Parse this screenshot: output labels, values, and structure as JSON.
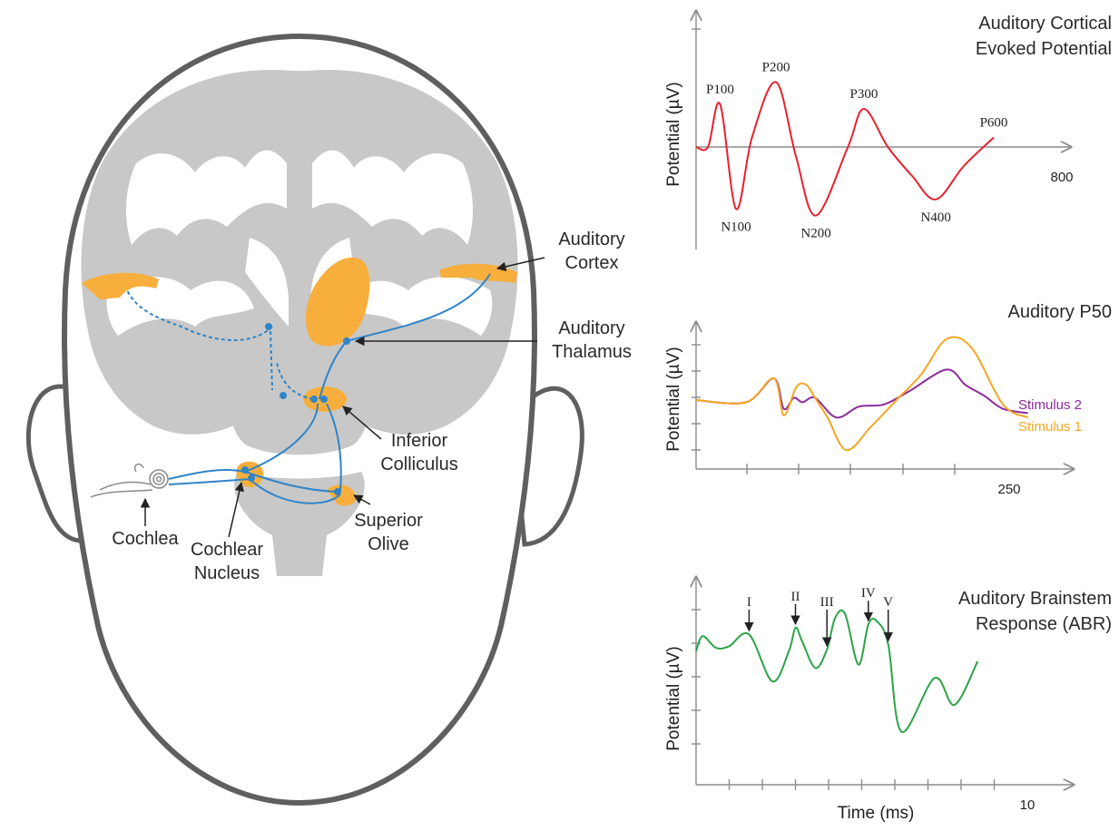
{
  "colors": {
    "orange": "#f7ae3c",
    "pathway_blue": "#2f84c8",
    "brain_gray": "#c8c8c8",
    "outline_gray": "#5f5f5f",
    "acep_red": "#e8212e",
    "p50_stimulus1": "#f5a623",
    "p50_stimulus2": "#8a2a9c",
    "abr_green": "#2aa447"
  },
  "anatomy_labels": {
    "auditory_cortex": [
      "Auditory",
      "Cortex"
    ],
    "auditory_thalamus": [
      "Auditory",
      "Thalamus"
    ],
    "inferior_colliculus": [
      "Inferior",
      "Colliculus"
    ],
    "superior_olive": [
      "Superior",
      "Olive"
    ],
    "cochlear_nucleus": [
      "Cochlear",
      "Nucleus"
    ],
    "cochlea": "Cochlea"
  },
  "chart_data": [
    {
      "type": "line",
      "title": [
        "Auditory Cortical",
        "Evoked Potential"
      ],
      "ylabel": "Potential (µV)",
      "xlabel": "",
      "x_tick_label": "800",
      "xlim": [
        0,
        800
      ],
      "ylim": [
        -1,
        1
      ],
      "series": [
        {
          "color": "#e8212e",
          "x": [
            0,
            30,
            60,
            100,
            140,
            200,
            250,
            300,
            380,
            420,
            480,
            540,
            600,
            670,
            745
          ],
          "y": [
            0,
            0.0,
            0.45,
            -0.65,
            0.1,
            0.68,
            -0.1,
            -0.72,
            0.0,
            0.4,
            0.0,
            -0.3,
            -0.55,
            -0.2,
            0.1
          ]
        }
      ],
      "peak_labels": [
        {
          "text": "P100",
          "x": 60
        },
        {
          "text": "N100",
          "x": 100
        },
        {
          "text": "P200",
          "x": 200
        },
        {
          "text": "N200",
          "x": 300
        },
        {
          "text": "P300",
          "x": 420
        },
        {
          "text": "N400",
          "x": 600
        },
        {
          "text": "P600",
          "x": 745
        }
      ]
    },
    {
      "type": "line",
      "title": [
        "Auditory P50"
      ],
      "ylabel": "Potential (µV)",
      "xlabel": "",
      "x_tick_label": "250",
      "xlim": [
        0,
        250
      ],
      "series": [
        {
          "name": "Stimulus 2",
          "color": "#8a2a9c",
          "x": [
            0,
            40,
            62,
            70,
            78,
            85,
            95,
            112,
            130,
            150,
            170,
            200,
            215,
            230,
            245,
            265
          ],
          "y": [
            0,
            -0.05,
            0.5,
            -0.2,
            0.05,
            -0.05,
            0.05,
            -0.4,
            -0.15,
            -0.1,
            0.2,
            0.7,
            0.35,
            0.1,
            -0.2,
            -0.3
          ]
        },
        {
          "name": "Stimulus 1",
          "color": "#f5a623",
          "x": [
            0,
            40,
            62,
            70,
            80,
            88,
            95,
            105,
            120,
            140,
            160,
            180,
            200,
            220,
            245,
            265
          ],
          "y": [
            0,
            -0.05,
            0.5,
            -0.35,
            0.3,
            0.35,
            0.05,
            -0.4,
            -1.15,
            -0.6,
            0.0,
            0.6,
            1.4,
            1.2,
            -0.1,
            -0.4
          ]
        }
      ]
    },
    {
      "type": "line",
      "title": [
        "Auditory Brainstem",
        "Response (ABR)"
      ],
      "ylabel": "Potential (µV)",
      "xlabel": "Time (ms)",
      "x_tick_label": "10",
      "xlim": [
        0,
        10
      ],
      "series": [
        {
          "color": "#2aa447",
          "x": [
            0,
            0.2,
            0.6,
            1.0,
            1.6,
            2.3,
            2.8,
            3.0,
            3.2,
            3.6,
            3.95,
            4.2,
            4.5,
            4.9,
            5.2,
            5.45,
            5.8,
            6.2,
            7.2,
            7.8,
            8.5
          ],
          "y": [
            0.6,
            1.05,
            0.7,
            0.75,
            1.1,
            -0.3,
            0.6,
            1.3,
            0.9,
            0.1,
            0.65,
            1.6,
            1.7,
            0.2,
            1.4,
            1.5,
            0.8,
            -1.8,
            -0.2,
            -1.0,
            0.3
          ]
        }
      ],
      "peak_labels": [
        {
          "text": "I",
          "x": 1.6
        },
        {
          "text": "II",
          "x": 3.0
        },
        {
          "text": "III",
          "x": 3.95
        },
        {
          "text": "IV",
          "x": 5.2
        },
        {
          "text": "V",
          "x": 5.8
        }
      ]
    }
  ]
}
